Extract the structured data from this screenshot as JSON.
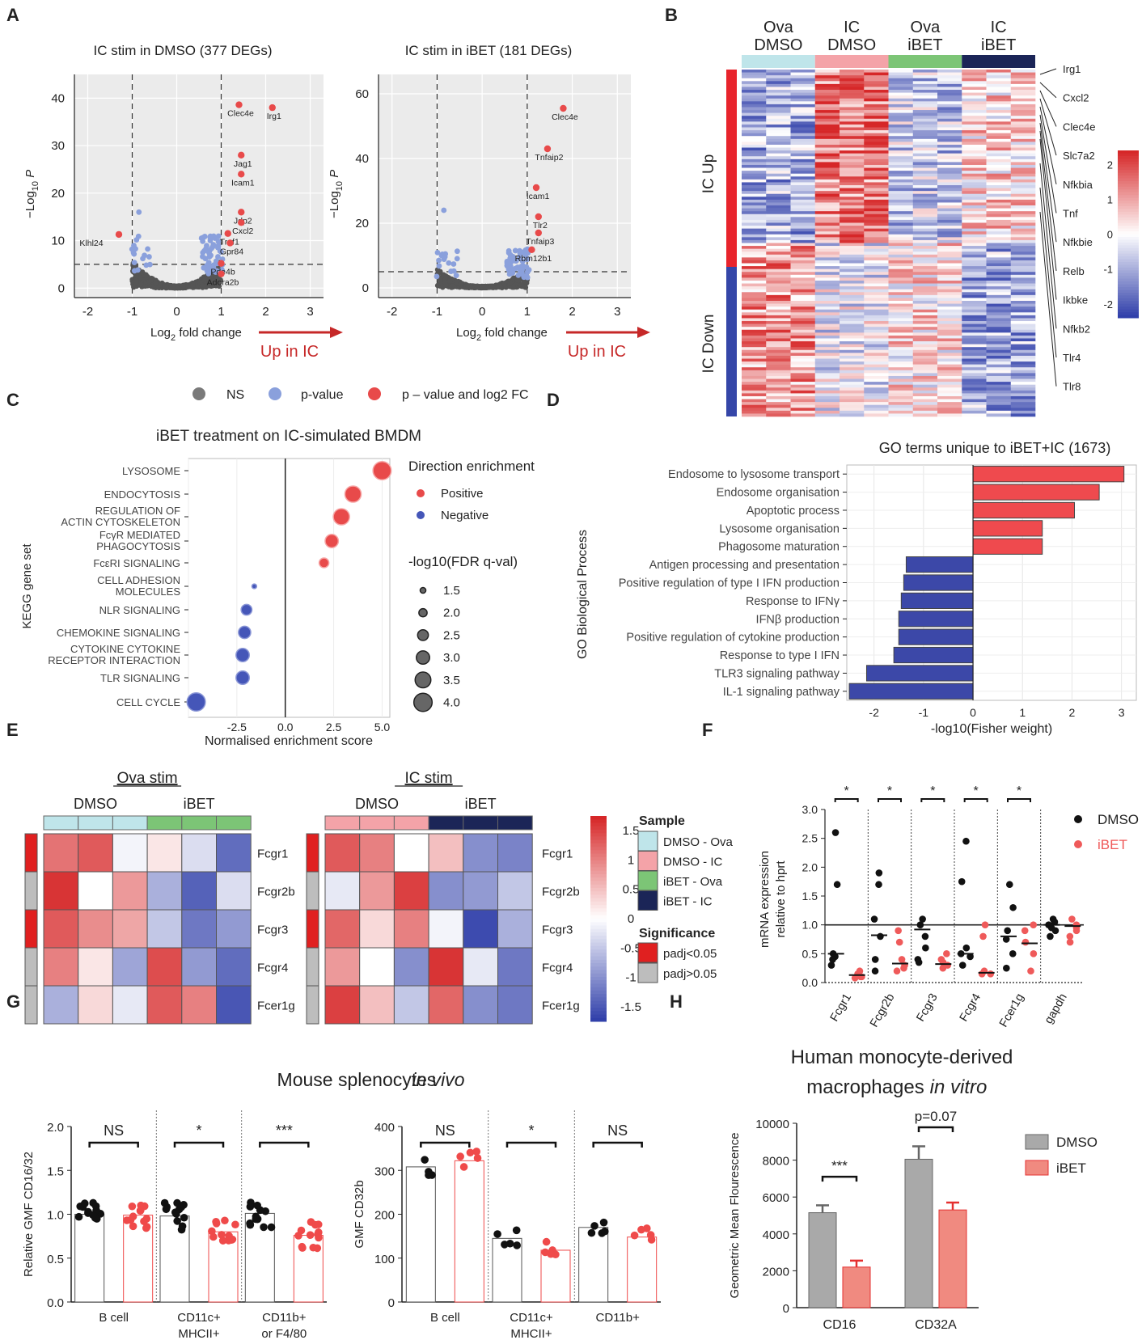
{
  "chart_data": [
    {
      "panel": "A",
      "type": "scatter",
      "subplots": [
        {
          "title": "IC stim in DMSO (377 DEGs)",
          "xlabel": "Log2 fold change",
          "ylabel": "−Log10 P",
          "xlim": [
            -2.3,
            3.3
          ],
          "ylim": [
            -2,
            45
          ],
          "xticks": [
            -2,
            -1,
            0,
            1,
            2,
            3
          ],
          "yticks": [
            0,
            10,
            20,
            30,
            40
          ],
          "labels": [
            {
              "t": "Irg1",
              "x": 2.15,
              "y": 38
            },
            {
              "t": "Clec4e",
              "x": 1.4,
              "y": 38.6
            },
            {
              "t": "Jag1",
              "x": 1.45,
              "y": 28
            },
            {
              "t": "Icam1",
              "x": 1.45,
              "y": 24
            },
            {
              "t": "Jdp2",
              "x": 1.45,
              "y": 16
            },
            {
              "t": "Cxcl2",
              "x": 1.45,
              "y": 13.8
            },
            {
              "t": "Traf1",
              "x": 1.15,
              "y": 11.5
            },
            {
              "t": "Gpr84",
              "x": 1.2,
              "y": 9.5
            },
            {
              "t": "Pde4b",
              "x": 1.0,
              "y": 5.2
            },
            {
              "t": "Adora2b",
              "x": 1.0,
              "y": 3.0
            },
            {
              "t": "Klhl24",
              "x": -1.3,
              "y": 11.3
            }
          ]
        },
        {
          "title": "IC stim in iBET (181 DEGs)",
          "xlabel": "Log2 fold change",
          "ylabel": "−Log10 P",
          "xlim": [
            -2.3,
            3.3
          ],
          "ylim": [
            -3,
            66
          ],
          "xticks": [
            -2,
            -1,
            0,
            1,
            2,
            3
          ],
          "yticks": [
            0,
            20,
            40,
            60
          ],
          "labels": [
            {
              "t": "Clec4e",
              "x": 1.8,
              "y": 55.5
            },
            {
              "t": "Tnfaip2",
              "x": 1.45,
              "y": 43
            },
            {
              "t": "Icam1",
              "x": 1.2,
              "y": 31
            },
            {
              "t": "Tlr2",
              "x": 1.25,
              "y": 22
            },
            {
              "t": "Tnfaip3",
              "x": 1.25,
              "y": 17
            },
            {
              "t": "Rbm12b1",
              "x": 1.1,
              "y": 11.8
            }
          ]
        }
      ],
      "arrow_label": "Up in IC",
      "legend": [
        "NS",
        "p-value",
        "p – value and log2 FC"
      ],
      "axis_ylabel_sub": "10",
      "axis_xlabel_sub": "2",
      "colors": {
        "ns": "#555555",
        "p": "#8aa0dc",
        "pfc": "#e84a4a"
      }
    },
    {
      "panel": "B",
      "type": "heatmap",
      "columns": [
        "Ova DMSO",
        "IC DMSO",
        "Ova iBET",
        "IC iBET"
      ],
      "column_colors": [
        "#bfe5ea",
        "#f4a3a8",
        "#7cc576",
        "#1b2557"
      ],
      "row_groups": [
        "IC Up",
        "IC Down"
      ],
      "genes": [
        "Irg1",
        "Cxcl2",
        "Clec4e",
        "Slc7a2",
        "Nfkbia",
        "Tnf",
        "Nfkbie",
        "Relb",
        "Ikbke",
        "Nfkb2",
        "Tlr4",
        "Tlr8"
      ],
      "colorbar": {
        "ticks": [
          "2",
          "1",
          "0",
          "-1",
          "-2"
        ]
      }
    },
    {
      "panel": "C",
      "type": "scatter",
      "title": "iBET treatment on IC-simulated BMDM",
      "xlabel": "Normalised enrichment score",
      "ylabel": "KEGG gene set",
      "xlim": [
        -5.0,
        5.4
      ],
      "xticks": [
        "-2.5",
        "0.0",
        "2.5",
        "5.0"
      ],
      "rows": [
        {
          "l1": "LYSOSOME",
          "l2": "",
          "nes": 5.0,
          "size": 4.0,
          "dir": "Positive"
        },
        {
          "l1": "ENDOCYTOSIS",
          "l2": "",
          "nes": 3.5,
          "size": 3.6,
          "dir": "Positive"
        },
        {
          "l1": "REGULATION OF",
          "l2": "ACTIN CYTOSKELETON",
          "nes": 2.9,
          "size": 3.6,
          "dir": "Positive"
        },
        {
          "l1": "FcγR MEDIATED",
          "l2": "PHAGOCYTOSIS",
          "nes": 2.4,
          "size": 3.0,
          "dir": "Positive"
        },
        {
          "l1": "FcεRI SIGNALING",
          "l2": "",
          "nes": 2.0,
          "size": 2.3,
          "dir": "Positive"
        },
        {
          "l1": "CELL ADHESION",
          "l2": "MOLECULES",
          "nes": -1.6,
          "size": 1.3,
          "dir": "Negative"
        },
        {
          "l1": "NLR SIGNALING",
          "l2": "",
          "nes": -2.0,
          "size": 2.5,
          "dir": "Negative"
        },
        {
          "l1": "CHEMOKINE SIGNALING",
          "l2": "",
          "nes": -2.1,
          "size": 2.8,
          "dir": "Negative"
        },
        {
          "l1": "CYTOKINE CYTOKINE",
          "l2": "RECEPTOR INTERACTION",
          "nes": -2.2,
          "size": 3.0,
          "dir": "Negative"
        },
        {
          "l1": "TLR SIGNALING",
          "l2": "",
          "nes": -2.2,
          "size": 3.0,
          "dir": "Negative"
        },
        {
          "l1": "CELL CYCLE",
          "l2": "",
          "nes": -4.6,
          "size": 4.0,
          "dir": "Negative"
        }
      ],
      "legend_title_dir": "Direction enrichment",
      "legend_dir": [
        "Positive",
        "Negative"
      ],
      "legend_title_size": "-log10(FDR q-val)",
      "legend_sizes": [
        "1.5",
        "2.0",
        "2.5",
        "3.0",
        "3.5",
        "4.0"
      ]
    },
    {
      "panel": "D",
      "type": "bar",
      "title": "GO terms unique to iBET+IC (1673)",
      "xlabel": "-log10(Fisher weight)",
      "ylabel": "GO Biological Process",
      "xlim": [
        -2.5,
        3.15
      ],
      "xticks": [
        "-2",
        "-1",
        "0",
        "1",
        "2",
        "3"
      ],
      "terms": [
        {
          "name": "Endosome to lysosome transport",
          "value": 3.05
        },
        {
          "name": "Endosome organisation",
          "value": 2.55
        },
        {
          "name": "Apoptotic process",
          "value": 2.05
        },
        {
          "name": "Lysosome organisation",
          "value": 1.4
        },
        {
          "name": "Phagosome maturation",
          "value": 1.4
        },
        {
          "name": "Antigen processing and presentation",
          "value": -1.35
        },
        {
          "name": "Positive regulation of type I IFN production",
          "value": -1.4
        },
        {
          "name": "Response to IFNγ",
          "value": -1.45
        },
        {
          "name": "IFNβ production",
          "value": -1.5
        },
        {
          "name": "Positive regulation of cytokine production",
          "value": -1.5
        },
        {
          "name": "Response to type I IFN",
          "value": -1.6
        },
        {
          "name": "TLR3 signaling pathway",
          "value": -2.15
        },
        {
          "name": "IL-1 signaling pathway",
          "value": -2.5
        }
      ]
    },
    {
      "panel": "E",
      "type": "heatmap",
      "panels": [
        {
          "title": "Ova stim",
          "groups": [
            "DMSO",
            "iBET"
          ],
          "values": [
            [
              1.1,
              1.3,
              -0.1,
              0.2,
              -0.3,
              -1.3
            ],
            [
              1.6,
              0.0,
              0.8,
              -0.7,
              -1.4,
              -0.3
            ],
            [
              1.3,
              0.9,
              0.7,
              -0.5,
              -1.2,
              -0.9
            ],
            [
              1.0,
              0.2,
              -0.8,
              1.4,
              -0.9,
              -1.3
            ],
            [
              -0.7,
              0.3,
              -0.2,
              1.3,
              1.0,
              -1.5
            ]
          ],
          "sig": [
            "red",
            "grey",
            "red",
            "grey",
            "grey"
          ]
        },
        {
          "title": "IC stim",
          "groups": [
            "DMSO",
            "iBET"
          ],
          "values": [
            [
              1.3,
              1.0,
              0.0,
              0.5,
              -1.0,
              -1.1
            ],
            [
              -0.2,
              0.8,
              1.5,
              -1.0,
              -0.9,
              -0.5
            ],
            [
              1.2,
              0.3,
              1.0,
              -0.1,
              -1.6,
              -0.7
            ],
            [
              0.8,
              0.0,
              -1.0,
              1.6,
              -0.2,
              -1.2
            ],
            [
              1.5,
              0.5,
              -0.5,
              1.2,
              -1.0,
              -1.2
            ]
          ],
          "sig": [
            "red",
            "grey",
            "red",
            "grey",
            "grey"
          ]
        }
      ],
      "genes": [
        "Fcgr1",
        "Fcgr2b",
        "Fcgr3",
        "Fcgr4",
        "Fcer1g"
      ],
      "colorbar_ticks": [
        "1.5",
        "1",
        "0.5",
        "0",
        "-0.5",
        "-1",
        "-1.5"
      ],
      "legend_title_sample": "Sample",
      "sample_legend": [
        {
          "name": "DMSO - Ova",
          "color": "#bfe5ea"
        },
        {
          "name": "DMSO - IC",
          "color": "#f4a3a8"
        },
        {
          "name": "iBET - Ova",
          "color": "#7cc576"
        },
        {
          "name": "iBET - IC",
          "color": "#1b2557"
        }
      ],
      "legend_title_sig": "Significance",
      "sig_legend": [
        {
          "name": "padj<0.05",
          "color": "#e02020"
        },
        {
          "name": "padj>0.05",
          "color": "#bdbdbd"
        }
      ]
    },
    {
      "panel": "F",
      "type": "scatter",
      "ylabel": "mRNA expression relative to hprt",
      "ylim": [
        0,
        3.0
      ],
      "yticks": [
        "0.0",
        "0.5",
        "1.0",
        "1.5",
        "2.0",
        "2.5",
        "3.0"
      ],
      "categories": [
        "Fcgr1",
        "Fcgr2b",
        "Fcgr3",
        "Fcgr4",
        "Fcer1g",
        "gapdh"
      ],
      "star": "*",
      "dmso": [
        [
          2.6,
          1.7,
          0.5,
          0.45,
          0.4,
          0.3
        ],
        [
          1.9,
          1.7,
          1.1,
          0.8,
          0.4,
          0.2
        ],
        [
          1.1,
          1.0,
          0.8,
          0.6,
          0.4,
          0.35
        ],
        [
          2.45,
          1.75,
          0.6,
          0.5,
          0.45,
          0.3
        ],
        [
          1.7,
          1.3,
          0.9,
          0.75,
          0.5,
          0.25
        ],
        [
          1.1,
          1.05,
          1.0,
          0.95,
          0.9,
          0.8
        ]
      ],
      "ibet": [
        [
          0.2,
          0.15,
          0.1,
          0.1,
          0.08
        ],
        [
          0.9,
          0.7,
          0.4,
          0.3,
          0.25,
          0.2
        ],
        [
          0.5,
          0.4,
          0.35,
          0.3,
          0.25
        ],
        [
          1.0,
          0.8,
          0.2,
          0.15,
          0.15
        ],
        [
          1.0,
          0.9,
          0.7,
          0.5,
          0.2
        ],
        [
          1.1,
          1.0,
          0.95,
          0.9,
          0.8,
          0.7
        ]
      ],
      "means_dmso": [
        0.5,
        0.82,
        0.92,
        0.5,
        0.8,
        1.0
      ],
      "means_ibet": [
        0.13,
        0.33,
        0.32,
        0.17,
        0.68,
        0.98
      ],
      "sig": [
        "*",
        "*",
        "*",
        "*",
        "*",
        ""
      ],
      "legend": [
        "DMSO",
        "iBET"
      ]
    },
    {
      "panel": "G",
      "type": "bar",
      "title": "Mouse splenocytes",
      "title_italic": "in vivo",
      "subplots": [
        {
          "ylabel": "Relative GMF CD16/32",
          "ylim": [
            0,
            2.0
          ],
          "yticks": [
            "0.0",
            "0.5",
            "1.0",
            "1.5",
            "2.0"
          ],
          "groups": [
            {
              "l1": "B cell",
              "l2": "",
              "sig": "NS",
              "dmso": 1.0,
              "ibet": 0.99
            },
            {
              "l1": "CD11c+",
              "l2": "MHCII+",
              "sig": "*",
              "dmso": 0.98,
              "ibet": 0.8
            },
            {
              "l1": "CD11b+",
              "l2": "or F4/80",
              "sig": "***",
              "dmso": 1.01,
              "ibet": 0.76
            }
          ]
        },
        {
          "ylabel": "GMF CD32b",
          "ylim": [
            0,
            400
          ],
          "yticks": [
            "0",
            "100",
            "200",
            "300",
            "400"
          ],
          "groups": [
            {
              "l1": "B cell",
              "l2": "",
              "sig": "NS",
              "dmso": 308,
              "ibet": 322
            },
            {
              "l1": "CD11c+",
              "l2": "MHCII+",
              "sig": "*",
              "dmso": 145,
              "ibet": 118
            },
            {
              "l1": "CD11b+",
              "l2": "",
              "sig": "NS",
              "dmso": 170,
              "ibet": 148
            }
          ]
        }
      ]
    },
    {
      "panel": "H",
      "type": "bar",
      "title_line1": "Human monocyte-derived",
      "title_line2": "macrophages",
      "title_italic": "in vitro",
      "ylabel": "Geometric Mean Flourescence",
      "ylim": [
        0,
        10000
      ],
      "yticks": [
        "0",
        "2000",
        "4000",
        "6000",
        "8000",
        "10000"
      ],
      "categories": [
        "CD16",
        "CD32A"
      ],
      "series": [
        {
          "name": "DMSO",
          "values": [
            5150,
            8050
          ],
          "err": [
            400,
            700
          ],
          "color": "#a9a9a9"
        },
        {
          "name": "iBET",
          "values": [
            2200,
            5300
          ],
          "err": [
            350,
            400
          ],
          "color": "#f08a80"
        }
      ],
      "sig": [
        "***",
        "p=0.07"
      ]
    }
  ],
  "panel_letters": [
    "A",
    "B",
    "C",
    "D",
    "E",
    "F",
    "G",
    "H"
  ]
}
